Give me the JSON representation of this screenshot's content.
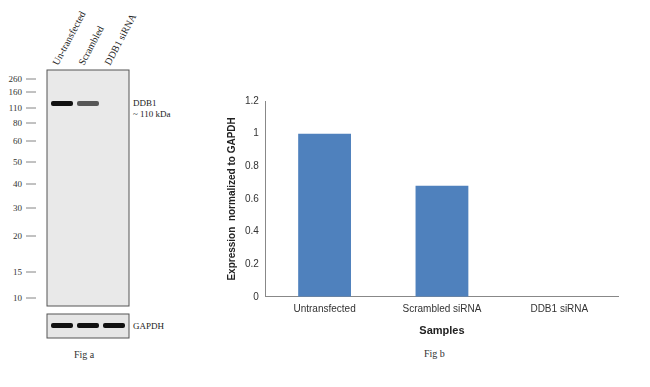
{
  "chart_data": {
    "type": "bar",
    "caption": "Fig b",
    "categories": [
      "Untransfected",
      "Scrambled siRNA",
      "DDB1 siRNA"
    ],
    "values": [
      1,
      0.68,
      0
    ],
    "color": "#4f81bd",
    "x_label": "Samples",
    "y_label": "Expression  normalized to GAPDH",
    "ylim": [
      0,
      1.2
    ],
    "yticks": [
      0,
      0.2,
      0.4,
      0.6,
      0.8,
      1,
      1.2
    ],
    "grid": false
  },
  "blot": {
    "caption": "Fig a",
    "lanes": [
      "Un-transfected",
      "Scrambled",
      "DDB1 siRNA"
    ],
    "markers": [
      260,
      160,
      110,
      80,
      60,
      50,
      40,
      30,
      20,
      15,
      10
    ],
    "target_label": "DDB1",
    "size_label": "~ 110 kDa",
    "loading_control": "GAPDH"
  }
}
